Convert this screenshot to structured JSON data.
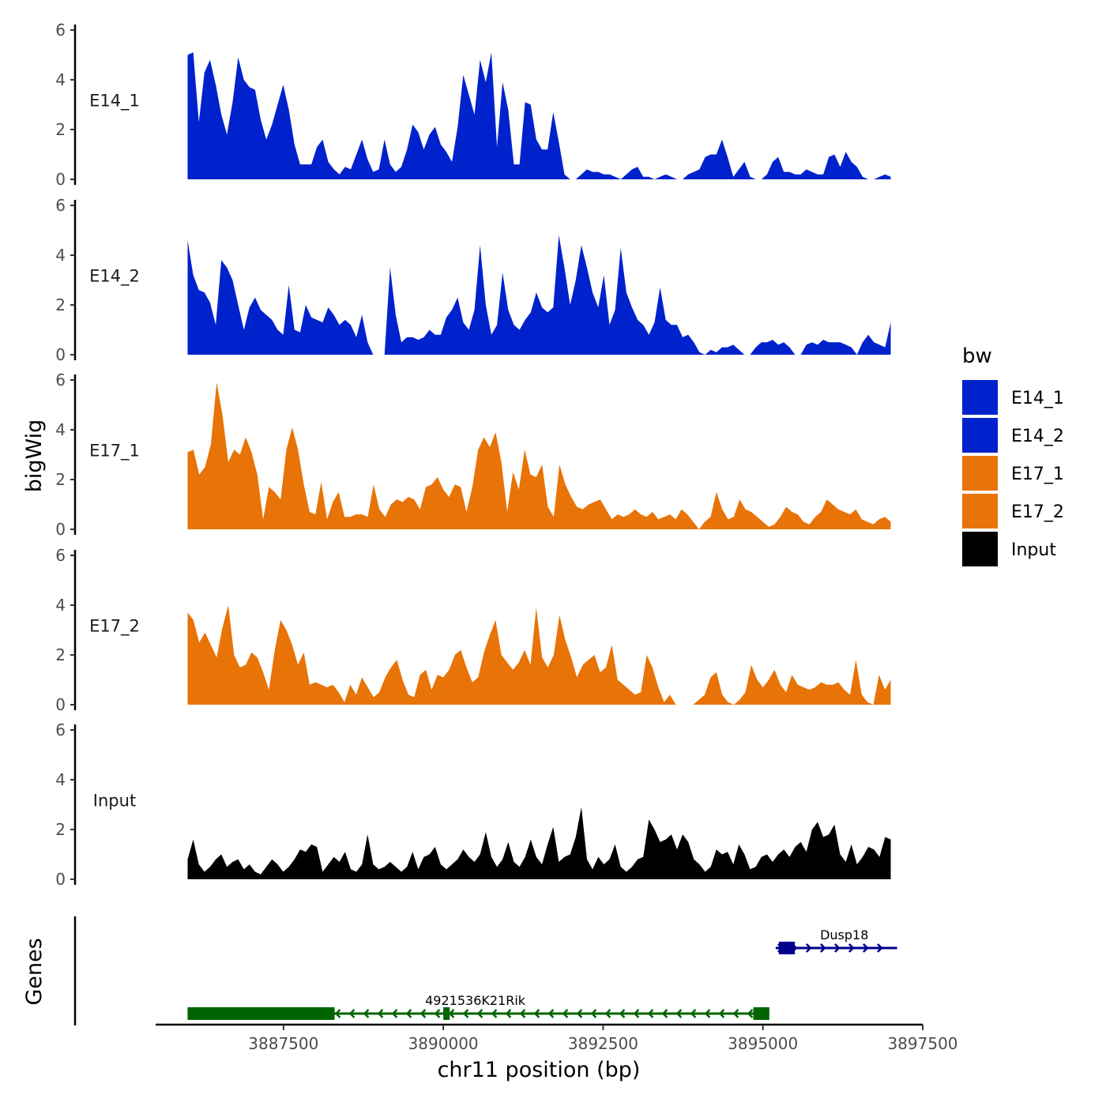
{
  "chart_data": {
    "type": "area",
    "ylabel": "bigWig",
    "xlabel": "chr11 position (bp)",
    "xlim": [
      3885500,
      3897500
    ],
    "data_xrange": [
      3886000,
      3897000
    ],
    "ylim": [
      0,
      6
    ],
    "y_ticks": [
      "0",
      "2",
      "4",
      "6"
    ],
    "x_ticks": [
      {
        "value": 3887500,
        "label": "3887500"
      },
      {
        "value": 3890000,
        "label": "3890000"
      },
      {
        "value": 3892500,
        "label": "3892500"
      },
      {
        "value": 3895000,
        "label": "3895000"
      },
      {
        "value": 3897500,
        "label": "3897500"
      }
    ],
    "legend": {
      "title": "bw",
      "entries": [
        {
          "name": "E14_1",
          "color": "#0022CC"
        },
        {
          "name": "E14_2",
          "color": "#0022CC"
        },
        {
          "name": "E17_1",
          "color": "#E87306"
        },
        {
          "name": "E17_2",
          "color": "#E87306"
        },
        {
          "name": "Input",
          "color": "#000000"
        }
      ]
    },
    "series": [
      {
        "name": "E14_1",
        "color": "#0022CC",
        "values": [
          5.0,
          5.1,
          2.3,
          4.3,
          4.8,
          3.8,
          2.6,
          1.8,
          3.1,
          4.9,
          4.0,
          3.7,
          3.6,
          2.4,
          1.6,
          2.2,
          3.0,
          3.8,
          2.8,
          1.4,
          0.6,
          0.6,
          0.6,
          1.3,
          1.6,
          0.7,
          0.4,
          0.2,
          0.5,
          0.4,
          1.0,
          1.6,
          0.8,
          0.3,
          0.4,
          1.6,
          0.6,
          0.3,
          0.5,
          1.2,
          2.2,
          1.9,
          1.2,
          1.8,
          2.1,
          1.4,
          1.1,
          0.7,
          2.1,
          4.2,
          3.4,
          2.6,
          4.8,
          3.9,
          5.1,
          1.3,
          3.9,
          2.8,
          0.6,
          0.6,
          3.1,
          3.0,
          1.6,
          1.2,
          1.2,
          2.7,
          1.5,
          0.2,
          0.0,
          0.0,
          0.2,
          0.4,
          0.3,
          0.3,
          0.2,
          0.2,
          0.1,
          0.0,
          0.2,
          0.4,
          0.5,
          0.1,
          0.1,
          0.0,
          0.1,
          0.2,
          0.1,
          0.0,
          0.0,
          0.2,
          0.3,
          0.4,
          0.9,
          1.0,
          1.0,
          1.6,
          0.9,
          0.1,
          0.4,
          0.7,
          0.1,
          0.0,
          0.0,
          0.2,
          0.7,
          0.9,
          0.3,
          0.3,
          0.2,
          0.2,
          0.4,
          0.3,
          0.2,
          0.2,
          0.9,
          1.0,
          0.5,
          1.1,
          0.7,
          0.5,
          0.1,
          0.0,
          0.0,
          0.1,
          0.2,
          0.1
        ]
      },
      {
        "name": "E14_2",
        "color": "#0022CC",
        "values": [
          4.6,
          3.2,
          2.6,
          2.5,
          2.1,
          1.2,
          3.8,
          3.5,
          3.0,
          2.0,
          1.0,
          1.9,
          2.3,
          1.8,
          1.6,
          1.4,
          1.0,
          0.8,
          2.8,
          1.0,
          0.9,
          2.0,
          1.5,
          1.4,
          1.3,
          1.9,
          1.6,
          1.2,
          1.4,
          1.2,
          0.7,
          1.6,
          0.5,
          0.0,
          0.0,
          0.0,
          3.5,
          1.6,
          0.5,
          0.7,
          0.7,
          0.6,
          0.7,
          1.0,
          0.8,
          0.8,
          1.5,
          1.8,
          2.3,
          1.3,
          1.0,
          1.8,
          4.4,
          2.0,
          0.8,
          1.2,
          3.3,
          1.8,
          1.2,
          1.0,
          1.4,
          1.7,
          2.5,
          1.9,
          1.7,
          1.9,
          4.8,
          3.5,
          2.0,
          3.0,
          4.4,
          3.5,
          2.5,
          1.9,
          3.2,
          1.2,
          1.8,
          4.3,
          2.5,
          1.9,
          1.4,
          1.2,
          0.8,
          1.3,
          2.7,
          1.4,
          1.2,
          1.2,
          0.7,
          0.8,
          0.5,
          0.1,
          0.0,
          0.2,
          0.1,
          0.3,
          0.3,
          0.4,
          0.2,
          0.0,
          0.0,
          0.3,
          0.5,
          0.5,
          0.6,
          0.4,
          0.5,
          0.3,
          0.0,
          0.0,
          0.4,
          0.5,
          0.4,
          0.6,
          0.5,
          0.5,
          0.5,
          0.4,
          0.3,
          0.0,
          0.5,
          0.8,
          0.5,
          0.4,
          0.3,
          1.3
        ]
      },
      {
        "name": "E17_1",
        "color": "#E87306",
        "values": [
          3.1,
          3.2,
          2.2,
          2.5,
          3.4,
          5.9,
          4.6,
          2.7,
          3.2,
          3.0,
          3.7,
          3.1,
          2.2,
          0.4,
          1.7,
          1.5,
          1.2,
          3.2,
          4.1,
          3.2,
          1.8,
          0.7,
          0.6,
          1.9,
          0.4,
          1.1,
          1.5,
          0.5,
          0.5,
          0.6,
          0.6,
          0.5,
          1.8,
          0.8,
          0.5,
          1.0,
          1.2,
          1.1,
          1.3,
          1.2,
          0.8,
          1.7,
          1.8,
          2.1,
          1.6,
          1.3,
          1.8,
          1.7,
          0.7,
          1.7,
          3.2,
          3.7,
          3.3,
          3.9,
          2.7,
          0.7,
          2.3,
          1.6,
          3.2,
          2.2,
          2.1,
          2.6,
          0.9,
          0.5,
          2.6,
          1.8,
          1.3,
          0.9,
          0.8,
          1.0,
          1.1,
          1.2,
          0.8,
          0.4,
          0.6,
          0.5,
          0.6,
          0.8,
          0.6,
          0.5,
          0.7,
          0.4,
          0.5,
          0.6,
          0.4,
          0.8,
          0.6,
          0.3,
          0.0,
          0.3,
          0.5,
          1.5,
          0.8,
          0.4,
          0.5,
          1.2,
          0.8,
          0.7,
          0.5,
          0.3,
          0.1,
          0.2,
          0.5,
          0.9,
          0.7,
          0.6,
          0.3,
          0.2,
          0.5,
          0.7,
          1.2,
          1.0,
          0.8,
          0.7,
          0.6,
          0.8,
          0.4,
          0.3,
          0.2,
          0.4,
          0.5,
          0.3
        ]
      },
      {
        "name": "E17_2",
        "color": "#E87306",
        "values": [
          3.7,
          3.4,
          2.5,
          2.9,
          2.4,
          1.9,
          3.1,
          4.0,
          2.0,
          1.5,
          1.6,
          2.1,
          1.9,
          1.3,
          0.6,
          2.2,
          3.4,
          3.0,
          2.4,
          1.6,
          2.1,
          0.8,
          0.9,
          0.8,
          0.7,
          0.8,
          0.5,
          0.1,
          0.8,
          0.4,
          1.1,
          0.7,
          0.3,
          0.5,
          1.1,
          1.5,
          1.8,
          1.0,
          0.4,
          0.3,
          1.2,
          1.4,
          0.6,
          1.2,
          1.1,
          1.4,
          2.0,
          2.2,
          1.5,
          0.9,
          1.1,
          2.1,
          2.8,
          3.4,
          2.0,
          1.7,
          1.4,
          1.7,
          2.2,
          1.6,
          3.9,
          1.9,
          1.5,
          2.0,
          3.6,
          2.6,
          1.9,
          1.1,
          1.6,
          1.8,
          2.0,
          1.3,
          1.5,
          2.4,
          1.0,
          0.8,
          0.6,
          0.4,
          0.5,
          2.0,
          1.5,
          0.7,
          0.1,
          0.4,
          0.0,
          0.0,
          0.0,
          0.0,
          0.2,
          0.4,
          1.1,
          1.3,
          0.4,
          0.1,
          0.0,
          0.2,
          0.5,
          1.6,
          1.0,
          0.7,
          1.0,
          1.4,
          0.8,
          0.5,
          1.2,
          0.8,
          0.7,
          0.6,
          0.7,
          0.9,
          0.8,
          0.8,
          0.9,
          0.6,
          0.4,
          1.8,
          0.4,
          0.1,
          0.0,
          1.2,
          0.6,
          1.0
        ]
      },
      {
        "name": "Input",
        "color": "#000000",
        "values": [
          0.8,
          1.6,
          0.6,
          0.3,
          0.5,
          0.8,
          1.0,
          0.5,
          0.7,
          0.8,
          0.4,
          0.6,
          0.3,
          0.2,
          0.5,
          0.8,
          0.6,
          0.3,
          0.5,
          0.8,
          1.2,
          1.1,
          1.4,
          1.3,
          0.3,
          0.6,
          0.9,
          0.7,
          1.1,
          0.4,
          0.3,
          0.6,
          1.8,
          0.6,
          0.4,
          0.5,
          0.7,
          0.5,
          0.3,
          0.5,
          1.1,
          0.4,
          0.9,
          1.0,
          1.3,
          0.6,
          0.4,
          0.6,
          0.8,
          1.2,
          0.9,
          0.7,
          1.0,
          1.9,
          0.9,
          0.5,
          0.8,
          1.5,
          0.7,
          0.5,
          0.9,
          1.6,
          0.9,
          0.6,
          1.4,
          2.1,
          0.7,
          0.9,
          1.0,
          1.7,
          2.9,
          0.8,
          0.4,
          0.9,
          0.6,
          0.8,
          1.4,
          0.5,
          0.3,
          0.5,
          0.8,
          0.9,
          2.4,
          2.0,
          1.5,
          1.6,
          1.8,
          1.2,
          1.8,
          1.5,
          0.8,
          0.6,
          0.3,
          0.5,
          1.2,
          1.0,
          1.1,
          0.6,
          1.4,
          1.0,
          0.4,
          0.5,
          0.9,
          1.0,
          0.7,
          1.0,
          1.2,
          0.9,
          1.3,
          1.5,
          1.1,
          2.0,
          2.3,
          1.7,
          1.8,
          2.2,
          1.0,
          0.7,
          1.4,
          0.6,
          0.9,
          1.3,
          1.2,
          0.9,
          1.7,
          1.6
        ]
      }
    ],
    "genes": {
      "ylabel": "Genes",
      "items": [
        {
          "name": "Dusp18",
          "start": 3895200,
          "end": 3897100,
          "strand": "+",
          "color": "#00008B",
          "exons": [
            [
              3895250,
              3895500
            ]
          ]
        },
        {
          "name": "4921536K21Rik",
          "start": 3886000,
          "end": 3895100,
          "strand": "-",
          "color": "#006400",
          "exons": [
            [
              3886000,
              3888300
            ],
            [
              3890000,
              3890100
            ],
            [
              3894850,
              3895100
            ]
          ]
        }
      ]
    }
  }
}
